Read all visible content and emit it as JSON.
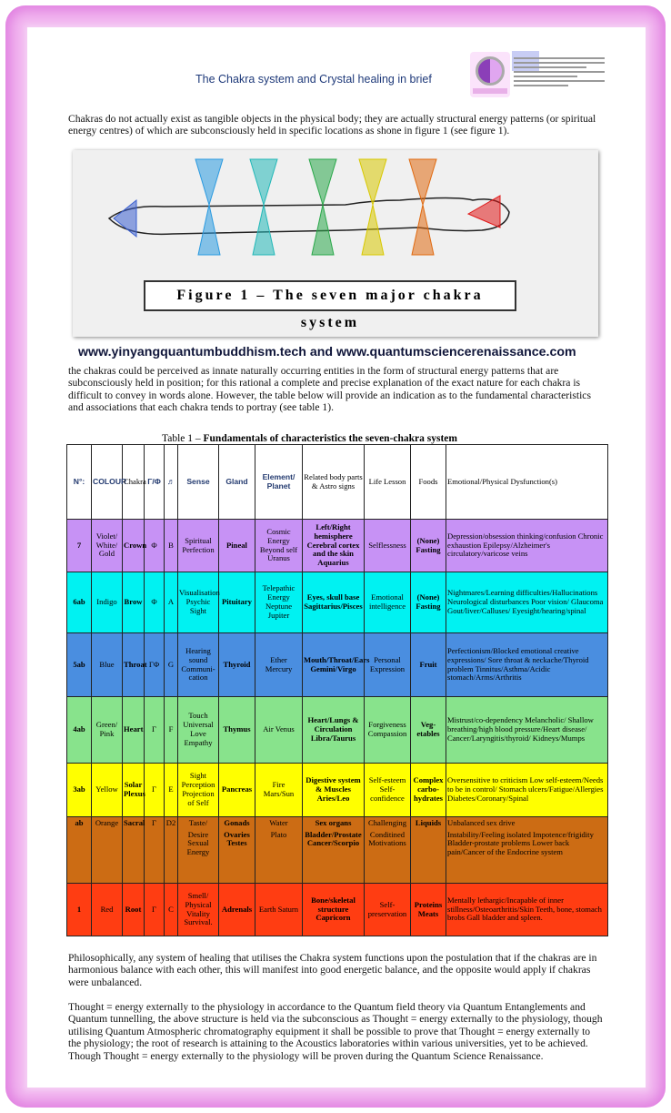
{
  "header": {
    "title": "The Chakra system and Crystal healing in brief"
  },
  "intro": "Chakras do not actually exist as tangible objects in the physical body; they are actually structural energy patterns (or spiritual energy centres) of which are subconsciously held in specific locations as shone in figure 1 (see figure 1).",
  "figure": {
    "caption": "Figure 1 – The seven major chakra system",
    "cone_colors": [
      "#3a5fd0",
      "#2a9ae0",
      "#22b8b8",
      "#2aa84a",
      "#d8c800",
      "#e06a10",
      "#e01818"
    ]
  },
  "url_line": "www.yinyangquantumbuddhism.tech and www.quantumsciencerenaissance.com",
  "para2": "the chakras could be perceived as innate naturally occurring entities in the form of structural energy patterns that are subconsciously held in position; for this rational a complete and precise explanation of the exact nature for each chakra is difficult to convey in words alone. However, the table below will provide an indication as to the fundamental characteristics and associations that each chakra tends to portray (see table 1).",
  "table": {
    "caption_prefix": "Table 1 – ",
    "caption_bold": "Fundamentals of characteristics the seven-chakra system",
    "headers": [
      "N°:",
      "COLOUR",
      "Chakra",
      "Γ/Φ",
      "♬",
      "Sense",
      "Gland",
      "Element/ Planet",
      "Related body parts & Astro signs",
      "Life Lesson",
      "Foods",
      "Emotional/Physical Dysfunction(s)"
    ],
    "rows": [
      {
        "color": "#c792f5",
        "cells": [
          "7",
          "Violet/ White/ Gold",
          "Crown",
          "Φ",
          "B",
          "Spiritual Perfection",
          "Pineal",
          "Cosmic Energy Beyond self Uranus",
          "Left/Right hemisphere Cerebral cortex and the skin Aquarius",
          "Selflessness",
          "(None) Fasting",
          "Depression/obsession thinking/confusion Chronic exhaustion Epilepsy/Alzheimer's circulatory/varicose veins"
        ]
      },
      {
        "color": "#00f2f2",
        "cells": [
          "6ab",
          "Indigo",
          "Brow",
          "Φ",
          "A",
          "Visualisation Psychic Sight",
          "Pituitary",
          "Telepathic Energy Neptune Jupiter",
          "Eyes, skull base Sagittarius/Pisces",
          "Emotional intelligence",
          "(None) Fasting",
          "Nightmares/Learning difficulties/Hallucinations Neurological disturbances Poor vision/ Glaucoma Gout/liver/Calluses/ Eyesight/hearing/spinal"
        ]
      },
      {
        "color": "#4a8ee0",
        "cells": [
          "5ab",
          "Blue",
          "Throat",
          "ΓΦ",
          "G",
          "Hearing sound Communi-cation",
          "Thyroid",
          "Ether Mercury",
          "Mouth/Throat/Ears Gemini/Virgo",
          "Personal Expression",
          "Fruit",
          "Perfectionism/Blocked emotional creative expressions/ Sore throat & neckache/Thyroid problem Tinnitus/Asthma/Acidic stomach/Arms/Arthritis"
        ]
      },
      {
        "color": "#88e38c",
        "cells": [
          "4ab",
          "Green/ Pink",
          "Heart",
          "Γ",
          "F",
          "Touch Universal Love Empathy",
          "Thymus",
          "Air Venus",
          "Heart/Lungs & Circulation Libra/Taurus",
          "Forgiveness Compassion",
          "Veg-etables",
          "Mistrust/co-dependency Melancholic/ Shallow breathing/high blood pressure/Heart disease/ Cancer/Laryngitis/thyroid/ Kidneys/Mumps"
        ]
      },
      {
        "color": "#ffff00",
        "cells": [
          "3ab",
          "Yellow",
          "Solar Plexus",
          "Γ",
          "E",
          "Sight Perception Projection of Self",
          "Pancreas",
          "Fire Mars/Sun",
          "Digestive system & Muscles Aries/Leo",
          "Self-esteem Self-confidence",
          "Complex carbo-hydrates",
          "Oversensitive to criticism Low self-esteem/Needs to be in control/ Stomach ulcers/Fatigue/Allergies Diabetes/Coronary/Spinal"
        ]
      },
      {
        "color": "#cc6c14",
        "cells": [
          "ab",
          "Orange",
          "Sacral",
          "Γ",
          "D2",
          "Taste/",
          "Gonads",
          "Water",
          "Sex organs",
          "Challenging",
          "Liquids",
          "Unbalanced sex drive"
        ]
      },
      {
        "color": "#cc6c14",
        "cells": [
          "",
          "",
          "",
          "",
          "",
          "Desire Sexual Energy",
          "Ovaries Testes",
          "Plato",
          "Bladder/Prostate Cancer/Scorpio",
          "Conditined Motivations",
          "",
          "Instability/Feeling isolated Impotence/frigidity Bladder-prostate problems Lower back pain/Cancer of the Endocrine system"
        ]
      },
      {
        "color": "#ff3d12",
        "cells": [
          "1",
          "Red",
          "Root",
          "Γ",
          "C",
          "Smell/ Physical Vitality Survival.",
          "Adrenals",
          "Earth Saturn",
          "Bone/skeletal structure Capricorn",
          "Self-preservation",
          "Proteins Meats",
          "Mentally lethargic/Incapable of inner stillness/Osteoarthritis/Skin Teeth, bone, stomach brobs Gall bladder and spleen."
        ]
      }
    ]
  },
  "para3": "Philosophically, any system of healing that utilises the Chakra system functions upon the postulation that if the chakras are in harmonious balance with each other, this will manifest into good energetic balance, and the opposite would apply if chakras were unbalanced.",
  "para4": "Thought = energy externally to the physiology in accordance to the Quantum field theory via Quantum Entanglements and Quantum tunnelling, the above structure is held via the subconscious as Thought = energy externally to the physiology, though utilising Quantum Atmospheric chromatography equipment it shall be possible to prove that Thought = energy externally to the physiology; the root of research is attaining to the Acoustics laboratories within various universities, yet to be achieved. Though Thought = energy externally to the physiology will be proven during the Quantum Science Renaissance."
}
